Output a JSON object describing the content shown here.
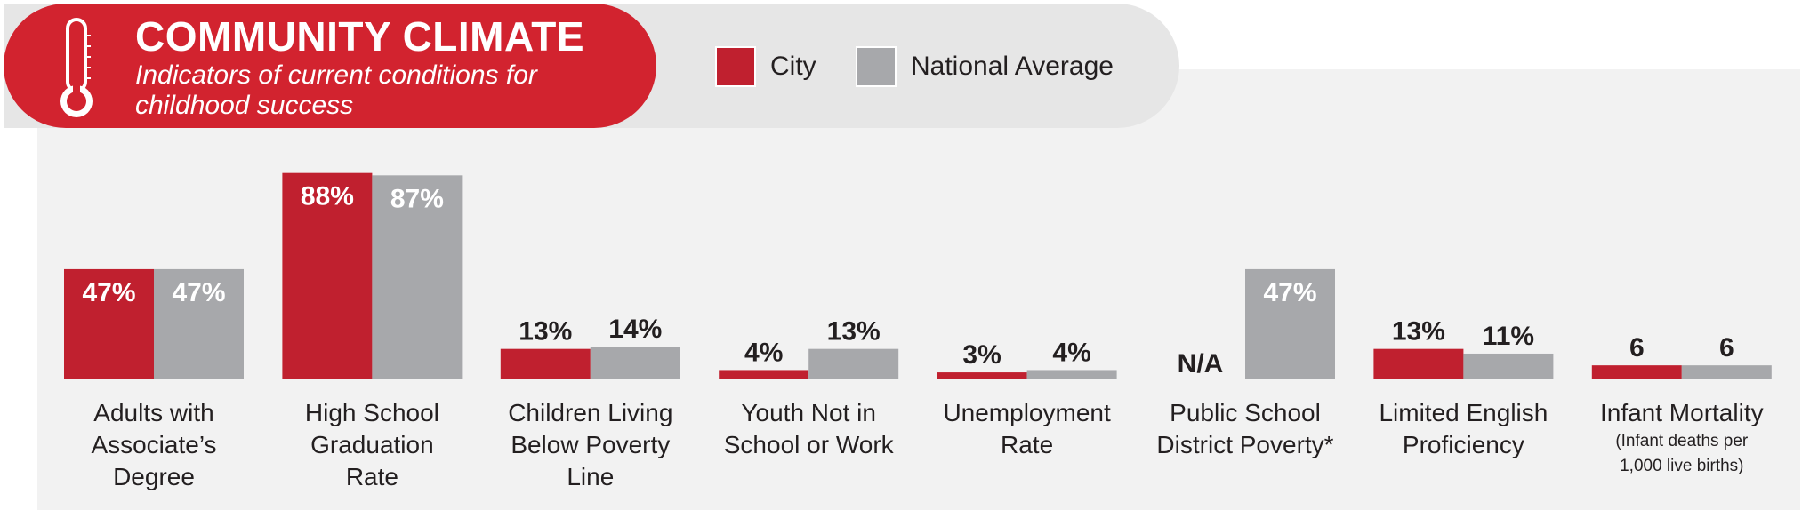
{
  "header": {
    "title": "COMMUNITY CLIMATE",
    "subtitle": "Indicators of current conditions for childhood success",
    "icon": "thermometer-icon"
  },
  "legend": {
    "city": "City",
    "national": "National Average"
  },
  "colors": {
    "city": "#c0202f",
    "national": "#a7a8ab",
    "header_bg": "#d2232f"
  },
  "chart_data": {
    "type": "bar",
    "title": "COMMUNITY CLIMATE",
    "subtitle": "Indicators of current conditions for childhood success",
    "categories": [
      {
        "lines": [
          "Adults with",
          "Associate’s",
          "Degree"
        ],
        "note": []
      },
      {
        "lines": [
          "High School",
          "Graduation",
          "Rate"
        ],
        "note": []
      },
      {
        "lines": [
          "Children Living",
          "Below Poverty",
          "Line"
        ],
        "note": []
      },
      {
        "lines": [
          "Youth Not in",
          "School or Work"
        ],
        "note": []
      },
      {
        "lines": [
          "Unemployment",
          "Rate"
        ],
        "note": []
      },
      {
        "lines": [
          "Public School",
          "District Poverty*"
        ],
        "note": []
      },
      {
        "lines": [
          "Limited English",
          "Proficiency"
        ],
        "note": []
      },
      {
        "lines": [
          "Infant Mortality"
        ],
        "note": [
          "(Infant deaths per",
          "1,000 live births)"
        ]
      }
    ],
    "series": [
      {
        "name": "City",
        "values": [
          47,
          88,
          13,
          4,
          3,
          null,
          13,
          6
        ],
        "labels": [
          "47%",
          "88%",
          "13%",
          "4%",
          "3%",
          "N/A",
          "13%",
          "6"
        ]
      },
      {
        "name": "National Average",
        "values": [
          47,
          87,
          14,
          13,
          4,
          47,
          11,
          6
        ],
        "labels": [
          "47%",
          "87%",
          "14%",
          "13%",
          "4%",
          "47%",
          "11%",
          "6"
        ]
      }
    ],
    "ylim": [
      0,
      100
    ],
    "grid": false,
    "legend_position": "top"
  }
}
